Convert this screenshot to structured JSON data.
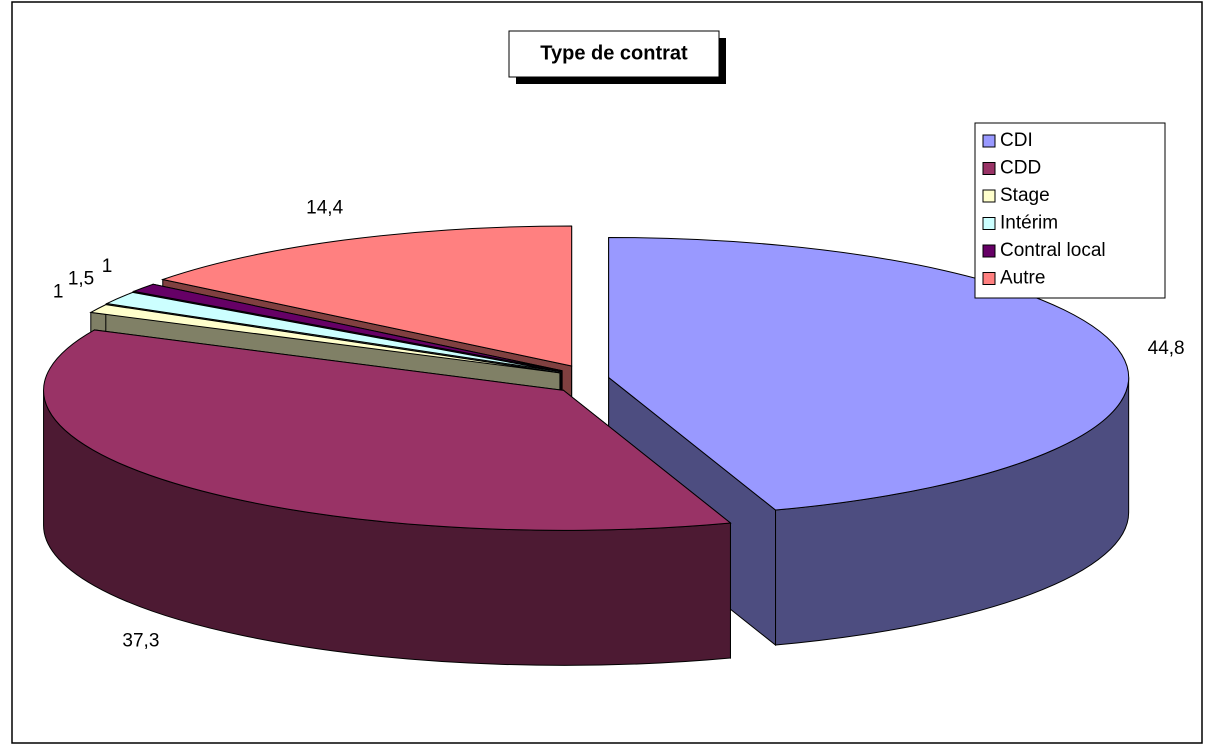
{
  "chart_data": {
    "type": "pie",
    "title": "Type de contrat",
    "categories": [
      "CDI",
      "CDD",
      "Stage",
      "Intérim",
      "Contral local",
      "Autre"
    ],
    "values": [
      44.8,
      37.3,
      1,
      1.5,
      1,
      14.4
    ],
    "value_labels": [
      "44,8",
      "37,3",
      "1",
      "1,5",
      "1",
      "14,4"
    ],
    "colors": [
      "#9999ff",
      "#993366",
      "#ffffcc",
      "#ccffff",
      "#660066",
      "#ff8080"
    ],
    "legend": "right"
  }
}
